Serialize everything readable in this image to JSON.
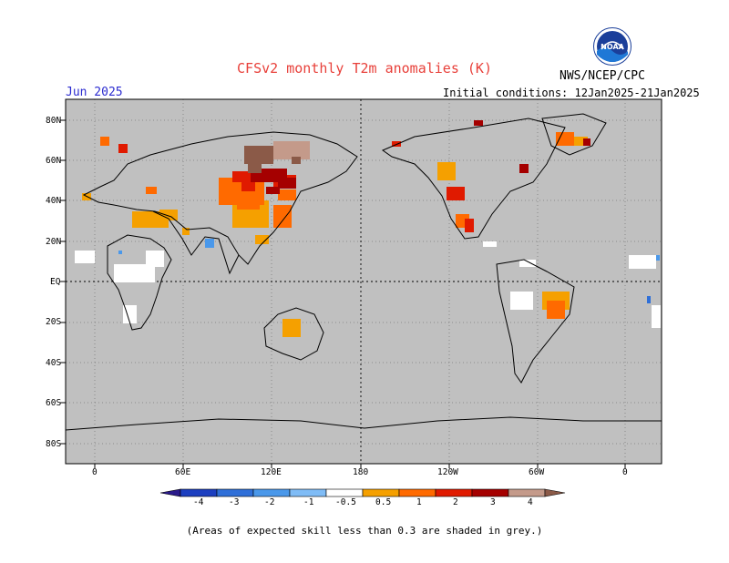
{
  "title": "CFSv2 monthly T2m anomalies (K)",
  "agency": "NWS/NCEP/CPC",
  "logo_label": "NOAA",
  "month": "Jun 2025",
  "initial_conditions": "Initial conditions: 12Jan2025-21Jan2025",
  "footnote": "(Areas of expected skill less than 0.3 are shaded in grey.)",
  "map": {
    "projection": "equirectangular, 0° centered on 180",
    "background_color": "#c0c0c0",
    "grid": "dotted",
    "lat_labels": [
      "80N",
      "60N",
      "40N",
      "20N",
      "EQ",
      "20S",
      "40S",
      "60S",
      "80S"
    ],
    "lon_labels": [
      "0",
      "60E",
      "120E",
      "180",
      "120W",
      "60W",
      "0"
    ]
  },
  "colorbar": {
    "labels": [
      "-4",
      "-3",
      "-2",
      "-1",
      "-0.5",
      "0.5",
      "1",
      "2",
      "3",
      "4"
    ],
    "colors": [
      "#2a1a8a",
      "#1c3fc0",
      "#2f6fd8",
      "#4a98ea",
      "#7fbcf6",
      "#ffffff",
      "#f5a000",
      "#ff6a00",
      "#e01a00",
      "#a50000",
      "#c49a8a",
      "#8b5a48"
    ]
  }
}
